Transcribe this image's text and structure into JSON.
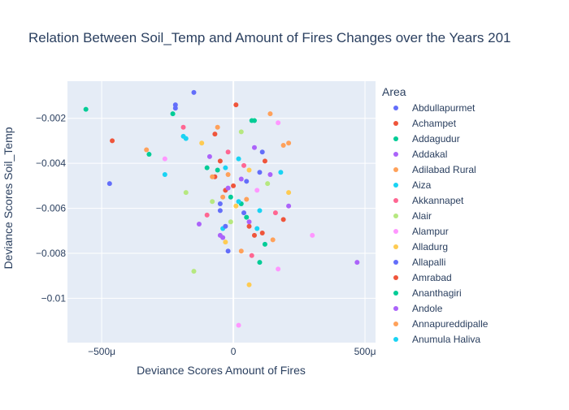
{
  "chart_data": {
    "type": "scatter",
    "title": "Relation Between Soil_Temp and Amount of Fires Changes over the Years 201",
    "xlabel": "Deviance Scores Amount of Fires",
    "ylabel": "Deviance Scores Soil_Temp",
    "xlim": [
      -0.00063,
      0.00054
    ],
    "ylim": [
      -0.01197,
      -0.00035
    ],
    "x_ticks": [
      {
        "value": -0.0005,
        "label": "−500μ"
      },
      {
        "value": 0,
        "label": "0"
      },
      {
        "value": 0.0005,
        "label": "500μ"
      }
    ],
    "y_ticks": [
      {
        "value": -0.002,
        "label": "−0.002"
      },
      {
        "value": -0.004,
        "label": "−0.004"
      },
      {
        "value": -0.006,
        "label": "−0.006"
      },
      {
        "value": -0.008,
        "label": "−0.008"
      },
      {
        "value": -0.01,
        "label": "−0.01"
      }
    ],
    "grid": true,
    "legend_title": "Area",
    "legend_position": "right",
    "series": [
      {
        "name": "Abdullapurmet",
        "color": "#636efa",
        "points": [
          [
            -0.00015,
            -0.00085
          ],
          [
            -0.00047,
            -0.0049
          ],
          [
            -0.00022,
            -0.00155
          ],
          [
            4e-05,
            -0.0062
          ],
          [
            -5e-05,
            -0.0058
          ],
          [
            0.0001,
            -0.0044
          ],
          [
            -2e-05,
            -0.0079
          ]
        ]
      },
      {
        "name": "Achampet",
        "color": "#EF553B",
        "points": [
          [
            1e-05,
            -0.0014
          ],
          [
            -0.00046,
            -0.003
          ],
          [
            -3e-05,
            -0.0052
          ],
          [
            6e-05,
            -0.0068
          ],
          [
            0.00011,
            -0.0071
          ],
          [
            -7e-05,
            -0.0046
          ],
          [
            0.00012,
            -0.0039
          ]
        ]
      },
      {
        "name": "Addagudur",
        "color": "#00cc96",
        "points": [
          [
            -0.00056,
            -0.0016
          ],
          [
            -0.00032,
            -0.0036
          ],
          [
            7e-05,
            -0.0021
          ],
          [
            -1e-05,
            -0.0055
          ],
          [
            5e-05,
            -0.0064
          ],
          [
            -0.0001,
            -0.0042
          ],
          [
            0.0001,
            -0.0084
          ]
        ]
      },
      {
        "name": "Addakal",
        "color": "#ab63fa",
        "points": [
          [
            0.00047,
            -0.0084
          ],
          [
            0.00021,
            -0.0059
          ],
          [
            -0.00013,
            -0.0067
          ],
          [
            3e-05,
            -0.0047
          ],
          [
            -4e-05,
            -0.0073
          ],
          [
            8e-05,
            -0.0033
          ]
        ]
      },
      {
        "name": "Adilabad Rural",
        "color": "#FFA15A",
        "points": [
          [
            -0.00033,
            -0.0034
          ],
          [
            0.00019,
            -0.0032
          ],
          [
            0.00015,
            -0.0074
          ],
          [
            -2e-05,
            -0.0045
          ],
          [
            5e-05,
            -0.0056
          ],
          [
            -6e-05,
            -0.0024
          ]
        ]
      },
      {
        "name": "Aiza",
        "color": "#19d3f3",
        "points": [
          [
            -0.00026,
            -0.0045
          ],
          [
            0.00018,
            -0.0044
          ],
          [
            -0.00019,
            -0.0028
          ],
          [
            2e-05,
            -0.0038
          ],
          [
            0.0001,
            -0.0061
          ],
          [
            -4e-05,
            -0.0069
          ]
        ]
      },
      {
        "name": "Akkannapet",
        "color": "#FF6692",
        "points": [
          [
            -0.00019,
            -0.0024
          ],
          [
            7e-05,
            -0.0081
          ],
          [
            -0.0001,
            -0.0063
          ],
          [
            4e-05,
            -0.0041
          ],
          [
            0.00016,
            -0.0062
          ],
          [
            -2e-05,
            -0.0035
          ]
        ]
      },
      {
        "name": "Alair",
        "color": "#B6E880",
        "points": [
          [
            -0.00015,
            -0.0088
          ],
          [
            -0.00018,
            -0.0053
          ],
          [
            3e-05,
            -0.0026
          ],
          [
            -1e-05,
            -0.0066
          ],
          [
            0.00013,
            -0.0049
          ],
          [
            -8e-05,
            -0.0057
          ]
        ]
      },
      {
        "name": "Alampur",
        "color": "#FF97FF",
        "points": [
          [
            0.0003,
            -0.0072
          ],
          [
            2e-05,
            -0.0112
          ],
          [
            0.00017,
            -0.0022
          ],
          [
            -0.00026,
            -0.0038
          ],
          [
            0.00017,
            -0.0087
          ],
          [
            9e-05,
            -0.0052
          ]
        ]
      },
      {
        "name": "Alladurg",
        "color": "#FECB52",
        "points": [
          [
            6e-05,
            -0.0094
          ],
          [
            0.00021,
            -0.0053
          ],
          [
            -0.00012,
            -0.0031
          ],
          [
            1e-05,
            -0.0059
          ],
          [
            6e-05,
            -0.0043
          ],
          [
            -3e-05,
            -0.0075
          ]
        ]
      },
      {
        "name": "Allapalli",
        "color": "#636efa",
        "points": [
          [
            -0.00022,
            -0.0014
          ],
          [
            0.00011,
            -0.0035
          ],
          [
            -3e-05,
            -0.0068
          ],
          [
            5e-05,
            -0.0048
          ],
          [
            -5e-05,
            -0.0061
          ]
        ]
      },
      {
        "name": "Amrabad",
        "color": "#EF553B",
        "points": [
          [
            0.00019,
            -0.0065
          ],
          [
            -5e-05,
            -0.0039
          ],
          [
            8e-05,
            -0.0072
          ],
          [
            0.0,
            -0.005
          ],
          [
            -7e-05,
            -0.0027
          ]
        ]
      },
      {
        "name": "Ananthagiri",
        "color": "#00cc96",
        "points": [
          [
            -0.00023,
            -0.0018
          ],
          [
            8e-05,
            -0.0021
          ],
          [
            -6e-05,
            -0.0043
          ],
          [
            3e-05,
            -0.0058
          ],
          [
            0.00012,
            -0.0076
          ]
        ]
      },
      {
        "name": "Andole",
        "color": "#ab63fa",
        "points": [
          [
            -5e-05,
            -0.0072
          ],
          [
            -2e-05,
            -0.0051
          ],
          [
            0.00014,
            -0.0045
          ],
          [
            -9e-05,
            -0.0037
          ],
          [
            6e-05,
            -0.0066
          ]
        ]
      },
      {
        "name": "Annapureddipalle",
        "color": "#FFA15A",
        "points": [
          [
            0.00014,
            -0.0018
          ],
          [
            0.00021,
            -0.0031
          ],
          [
            -4e-05,
            -0.0055
          ],
          [
            3e-05,
            -0.0079
          ],
          [
            -8e-05,
            -0.0046
          ]
        ]
      },
      {
        "name": "Anumula  Haliya",
        "color": "#19d3f3",
        "points": [
          [
            -0.00018,
            -0.0029
          ],
          [
            2e-05,
            -0.0057
          ],
          [
            -3e-05,
            -0.0042
          ],
          [
            9e-05,
            -0.0069
          ]
        ]
      }
    ]
  }
}
